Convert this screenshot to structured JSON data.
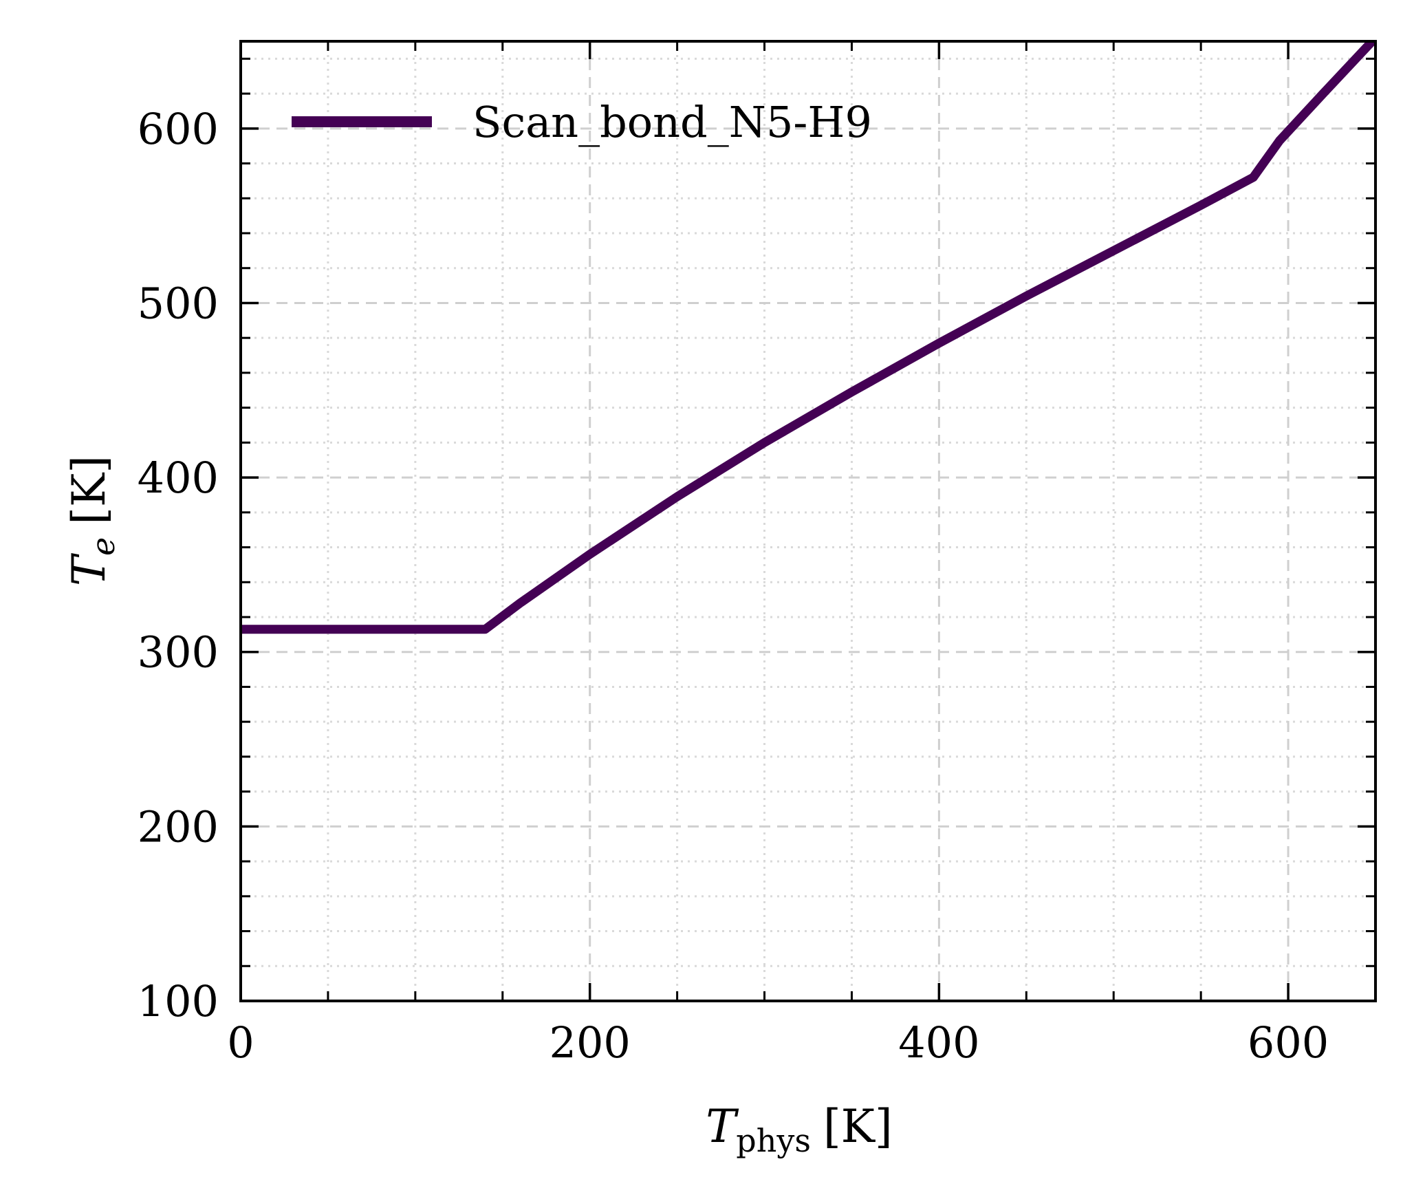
{
  "chart_data": {
    "type": "line",
    "xlabel": {
      "symbol": "T",
      "subscript": "phys",
      "unit": "[K]"
    },
    "ylabel": {
      "symbol": "T",
      "subscript": "e",
      "unit": "[K]"
    },
    "xlim": [
      0,
      650
    ],
    "ylim": [
      100,
      650
    ],
    "xticks": [
      0,
      200,
      400,
      600
    ],
    "xtick_labels": [
      "0",
      "200",
      "400",
      "600"
    ],
    "yticks": [
      100,
      200,
      300,
      400,
      500,
      600
    ],
    "ytick_labels": [
      "100",
      "200",
      "300",
      "400",
      "500",
      "600"
    ],
    "x_minor_step": 50,
    "y_minor_step": 20,
    "grid": true,
    "legend_position": "top-left",
    "series": [
      {
        "name": "Scan_bond_N5-H9",
        "color": "#440154",
        "x": [
          0,
          140,
          160,
          200,
          250,
          300,
          350,
          400,
          450,
          500,
          550,
          580,
          595,
          620,
          650
        ],
        "y": [
          313,
          313,
          328,
          356,
          389,
          420,
          449,
          477,
          504,
          530,
          556,
          572,
          593,
          620,
          652
        ]
      }
    ]
  }
}
